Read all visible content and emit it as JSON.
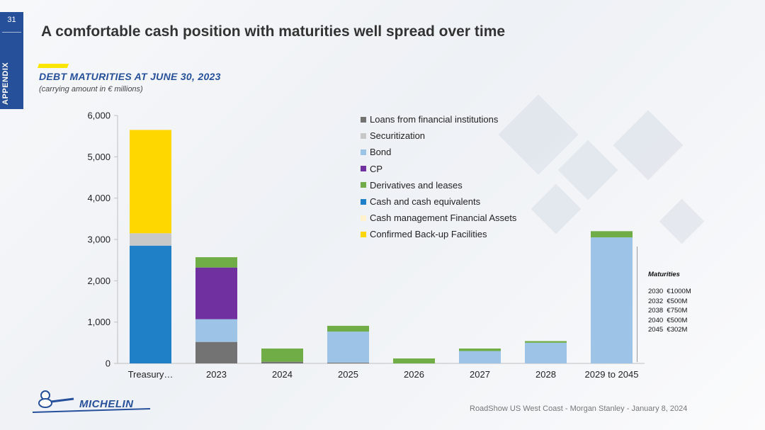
{
  "page": {
    "number": "31",
    "side_label": "APPENDIX",
    "title": "A comfortable cash position with maturities well spread over time",
    "footer": "RoadShow US West Coast - Morgan Stanley - January 8, 2024",
    "logo_text": "MICHELIN"
  },
  "colors": {
    "brand_blue": "#27509b",
    "accent_yellow": "#fce500"
  },
  "chart_data": {
    "type": "bar",
    "stacked": true,
    "title": "DEBT MATURITIES AT JUNE 30, 2023",
    "subtitle": "(carrying amount in € millions)",
    "xlabel": "",
    "ylabel": "",
    "ylim": [
      0,
      6000
    ],
    "yticks": [
      0,
      1000,
      2000,
      3000,
      4000,
      5000,
      6000
    ],
    "ytick_labels": [
      "0",
      "1,000",
      "2,000",
      "3,000",
      "4,000",
      "5,000",
      "6,000"
    ],
    "categories": [
      "Treasury…",
      "2023",
      "2024",
      "2025",
      "2026",
      "2027",
      "2028",
      "2029 to 2045"
    ],
    "legend_position": "top-right",
    "grid": false,
    "series": [
      {
        "name": "Loans from financial institutions",
        "color": "#737373",
        "values": [
          0,
          520,
          40,
          20,
          0,
          0,
          0,
          0
        ]
      },
      {
        "name": "Securitization",
        "color": "#c8c8c8",
        "values": [
          0,
          0,
          0,
          0,
          0,
          0,
          0,
          0
        ]
      },
      {
        "name": "Bond",
        "color": "#9dc3e6",
        "values": [
          0,
          550,
          0,
          750,
          0,
          300,
          500,
          3050
        ]
      },
      {
        "name": "CP",
        "color": "#7030a0",
        "values": [
          0,
          1250,
          0,
          0,
          0,
          0,
          0,
          0
        ]
      },
      {
        "name": "Derivatives and leases",
        "color": "#70ad47",
        "values": [
          0,
          250,
          320,
          140,
          120,
          60,
          40,
          150
        ]
      },
      {
        "name": "Cash and cash equivalents",
        "color": "#1f80c8",
        "values": [
          2850,
          0,
          0,
          0,
          0,
          0,
          0,
          0
        ]
      },
      {
        "name": "Cash management Financial Assets",
        "color": "#fff2cc",
        "values": [
          0,
          0,
          0,
          0,
          0,
          0,
          0,
          0
        ]
      },
      {
        "name": "Confirmed Back-up Facilities",
        "color": "#ffd700",
        "values": [
          2500,
          0,
          0,
          0,
          0,
          0,
          0,
          0
        ]
      }
    ],
    "extra_segments": [
      {
        "category": "Treasury…",
        "color": "#c8c8c8",
        "value": 300,
        "after_series": "Cash and cash equivalents"
      }
    ],
    "annotation": {
      "title": "Maturities",
      "rows": [
        {
          "year": "2030",
          "amount": "€1000M"
        },
        {
          "year": "2032",
          "amount": "€500M"
        },
        {
          "year": "2038",
          "amount": "€750M"
        },
        {
          "year": "2040",
          "amount": "€500M"
        },
        {
          "year": "2045",
          "amount": "€302M"
        }
      ]
    }
  }
}
